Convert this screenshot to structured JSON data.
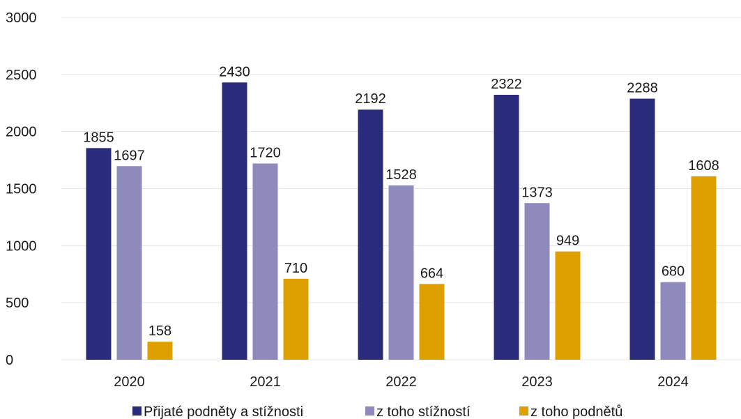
{
  "chart_data": {
    "type": "bar",
    "categories": [
      "2020",
      "2021",
      "2022",
      "2023",
      "2024"
    ],
    "series": [
      {
        "name": "Přijaté podněty a stížnosti",
        "color": "#2a2b7a",
        "values": [
          1855,
          2430,
          2192,
          2322,
          2288
        ]
      },
      {
        "name": "z toho stížností",
        "color": "#8e8abc",
        "values": [
          1697,
          1720,
          1528,
          1373,
          680
        ]
      },
      {
        "name": "z toho podnětů",
        "color": "#dea000",
        "values": [
          158,
          710,
          664,
          949,
          1608
        ]
      }
    ],
    "yticks": [
      "0",
      "500",
      "1000",
      "1500",
      "2000",
      "2500",
      "3000"
    ],
    "ylim": [
      0,
      3000
    ],
    "grid": true,
    "legend_position": "bottom"
  }
}
